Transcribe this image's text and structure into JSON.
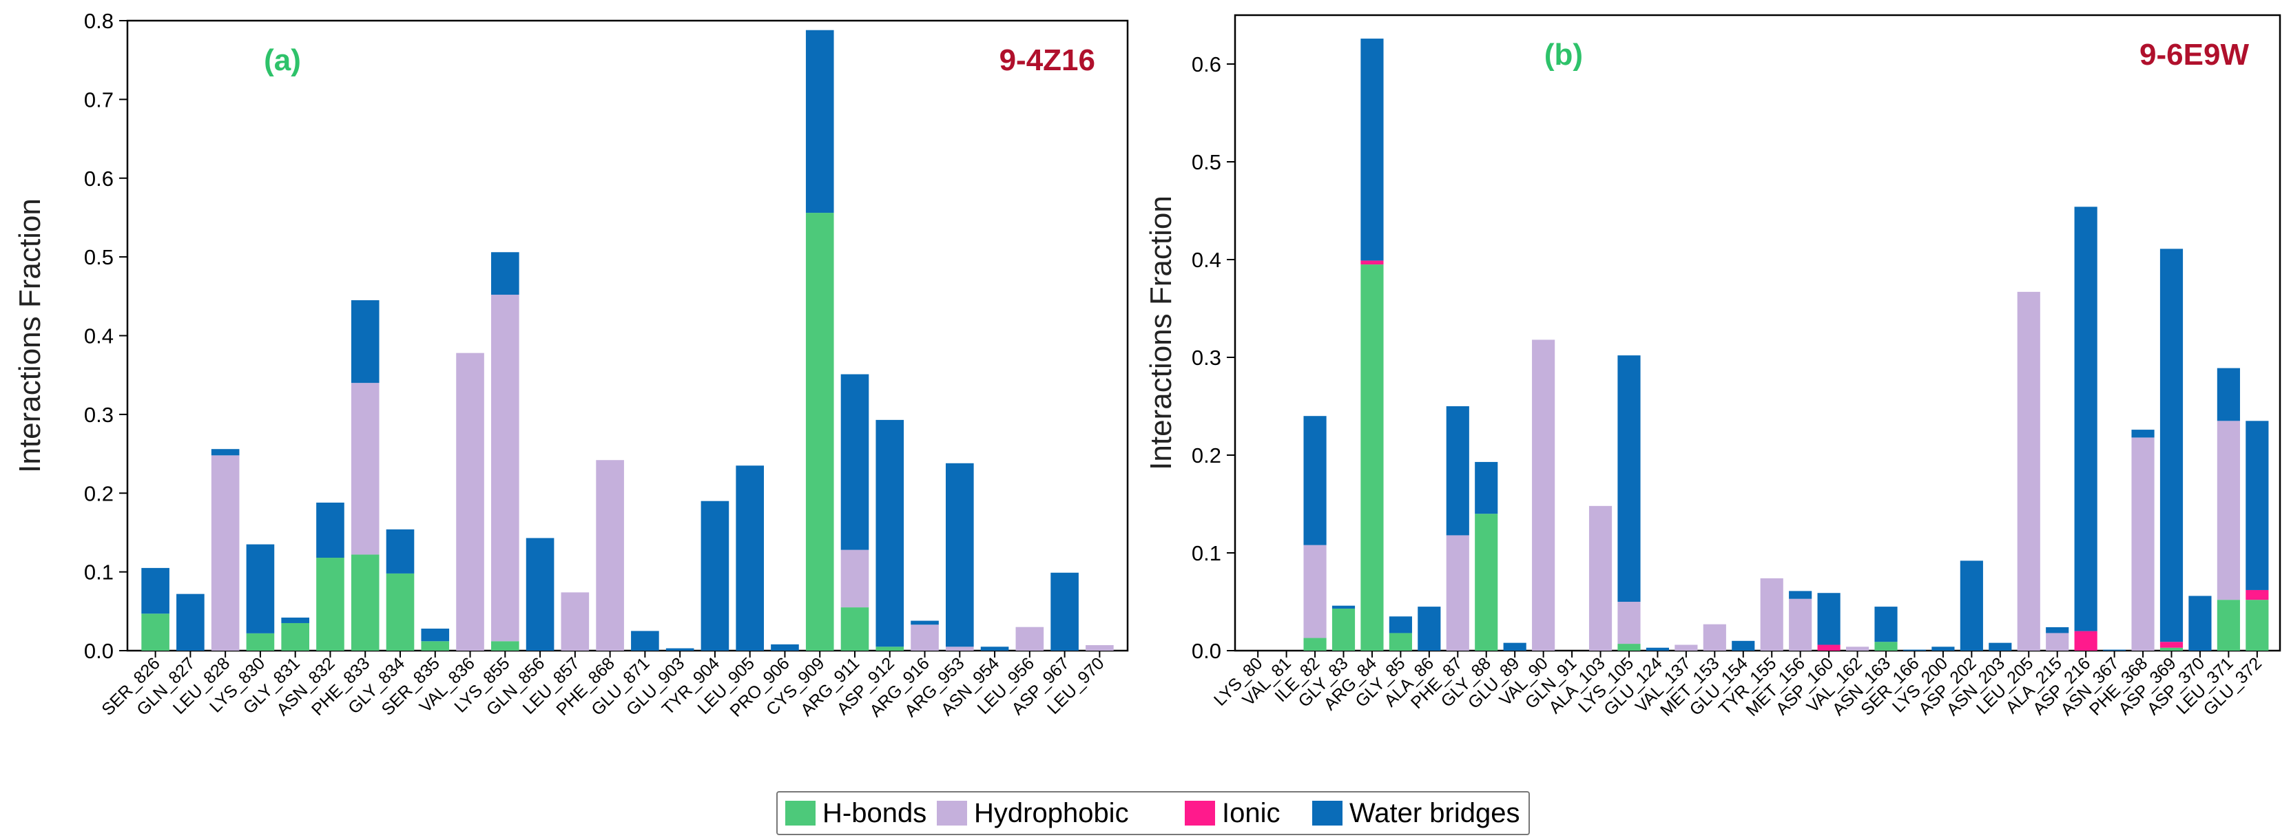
{
  "legend": {
    "items": [
      {
        "label": "H-bonds",
        "color": "#4dc97a"
      },
      {
        "label": "Hydrophobic",
        "color": "#c5b0dc"
      },
      {
        "label": "Ionic",
        "color": "#ff1a8c"
      },
      {
        "label": "Water bridges",
        "color": "#0a6cb8"
      }
    ]
  },
  "chart_data": [
    {
      "type": "bar",
      "stacked": true,
      "panel_label": "(a)",
      "title": "9-4Z16",
      "ylabel": "Interactions Fraction",
      "ylim": [
        0,
        0.8
      ],
      "yticks": [
        "0.0",
        "0.1",
        "0.2",
        "0.3",
        "0.4",
        "0.5",
        "0.6",
        "0.7",
        "0.8"
      ],
      "categories": [
        "SER_826",
        "GLN_827",
        "LEU_828",
        "LYS_830",
        "GLY_831",
        "ASN_832",
        "PHE_833",
        "GLY_834",
        "SER_835",
        "VAL_836",
        "LYS_855",
        "GLN_856",
        "LEU_857",
        "PHE_868",
        "GLU_871",
        "GLU_903",
        "TYR_904",
        "LEU_905",
        "PRO_906",
        "CYS_909",
        "ARG_911",
        "ASP_912",
        "ARG_916",
        "ARG_953",
        "ASN_954",
        "LEU_956",
        "ASP_967",
        "LEU_970"
      ],
      "series": [
        {
          "name": "H-bonds",
          "color": "#4dc97a",
          "values": [
            0.047,
            0,
            0,
            0.022,
            0.035,
            0.118,
            0.122,
            0.098,
            0.012,
            0,
            0.012,
            0,
            0,
            0,
            0,
            0,
            0,
            0,
            0,
            0.556,
            0.055,
            0.005,
            0,
            0,
            0,
            0,
            0,
            0
          ]
        },
        {
          "name": "Hydrophobic",
          "color": "#c5b0dc",
          "values": [
            0,
            0,
            0.248,
            0,
            0,
            0,
            0.218,
            0,
            0,
            0.378,
            0.44,
            0,
            0.074,
            0.242,
            0,
            0,
            0,
            0,
            0,
            0,
            0.073,
            0,
            0.033,
            0.005,
            0,
            0.03,
            0,
            0.007
          ]
        },
        {
          "name": "Ionic",
          "color": "#ff1a8c",
          "values": [
            0,
            0,
            0,
            0,
            0,
            0,
            0,
            0,
            0,
            0,
            0,
            0,
            0,
            0,
            0,
            0,
            0,
            0,
            0,
            0,
            0,
            0,
            0,
            0,
            0,
            0,
            0,
            0
          ]
        },
        {
          "name": "Water bridges",
          "color": "#0a6cb8",
          "values": [
            0.058,
            0.072,
            0.008,
            0.113,
            0.007,
            0.07,
            0.105,
            0.056,
            0.016,
            0,
            0.054,
            0.143,
            0,
            0,
            0.025,
            0.003,
            0.19,
            0.235,
            0.008,
            0.232,
            0.223,
            0.288,
            0.005,
            0.233,
            0.005,
            0,
            0.099,
            0
          ]
        }
      ]
    },
    {
      "type": "bar",
      "stacked": true,
      "panel_label": "(b)",
      "title": "9-6E9W",
      "ylabel": "Interactions Fraction",
      "ylim": [
        0,
        0.65
      ],
      "yticks": [
        "0.0",
        "0.1",
        "0.2",
        "0.3",
        "0.4",
        "0.5",
        "0.6"
      ],
      "categories": [
        "LYS_80",
        "VAL_81",
        "ILE_82",
        "GLY_83",
        "ARG_84",
        "GLY_85",
        "ALA_86",
        "PHE_87",
        "GLY_88",
        "GLU_89",
        "VAL_90",
        "GLN_91",
        "ALA_103",
        "LYS_105",
        "GLU_124",
        "VAL_137",
        "MET_153",
        "GLU_154",
        "TYR_155",
        "MET_156",
        "ASP_160",
        "VAL_162",
        "ASN_163",
        "SER_166",
        "LYS_200",
        "ASP_202",
        "ASN_203",
        "LEU_205",
        "ALA_215",
        "ASP_216",
        "ASN_367",
        "PHE_368",
        "ASP_369",
        "ASP_370",
        "LEU_371",
        "GLU_372"
      ],
      "series": [
        {
          "name": "H-bonds",
          "color": "#4dc97a",
          "values": [
            0,
            0,
            0.013,
            0.043,
            0.395,
            0.018,
            0,
            0,
            0.14,
            0,
            0,
            0,
            0,
            0.007,
            0,
            0,
            0,
            0,
            0,
            0,
            0,
            0,
            0.009,
            0,
            0,
            0,
            0,
            0,
            0,
            0,
            0,
            0,
            0.003,
            0,
            0.052,
            0.052
          ]
        },
        {
          "name": "Hydrophobic",
          "color": "#c5b0dc",
          "values": [
            0,
            0,
            0.095,
            0,
            0,
            0,
            0,
            0.118,
            0,
            0,
            0.318,
            0,
            0.148,
            0.043,
            0,
            0.006,
            0.027,
            0,
            0.074,
            0.053,
            0,
            0.004,
            0,
            0,
            0,
            0,
            0,
            0.367,
            0.018,
            0,
            0,
            0.218,
            0,
            0,
            0.183,
            0
          ]
        },
        {
          "name": "Ionic",
          "color": "#ff1a8c",
          "values": [
            0,
            0,
            0,
            0,
            0.004,
            0,
            0,
            0,
            0,
            0,
            0,
            0,
            0,
            0,
            0,
            0,
            0,
            0,
            0,
            0,
            0.006,
            0,
            0,
            0,
            0,
            0,
            0,
            0,
            0,
            0.02,
            0,
            0,
            0.006,
            0,
            0,
            0.01
          ]
        },
        {
          "name": "Water bridges",
          "color": "#0a6cb8",
          "values": [
            0,
            0,
            0.132,
            0.003,
            0.227,
            0.017,
            0.045,
            0.132,
            0.053,
            0.008,
            0,
            0,
            0,
            0.252,
            0.003,
            0,
            0,
            0.01,
            0,
            0.008,
            0.053,
            0,
            0.036,
            0.001,
            0.004,
            0.092,
            0.008,
            0,
            0.006,
            0.434,
            0.001,
            0.008,
            0.402,
            0.056,
            0.054,
            0.173
          ]
        }
      ]
    }
  ]
}
